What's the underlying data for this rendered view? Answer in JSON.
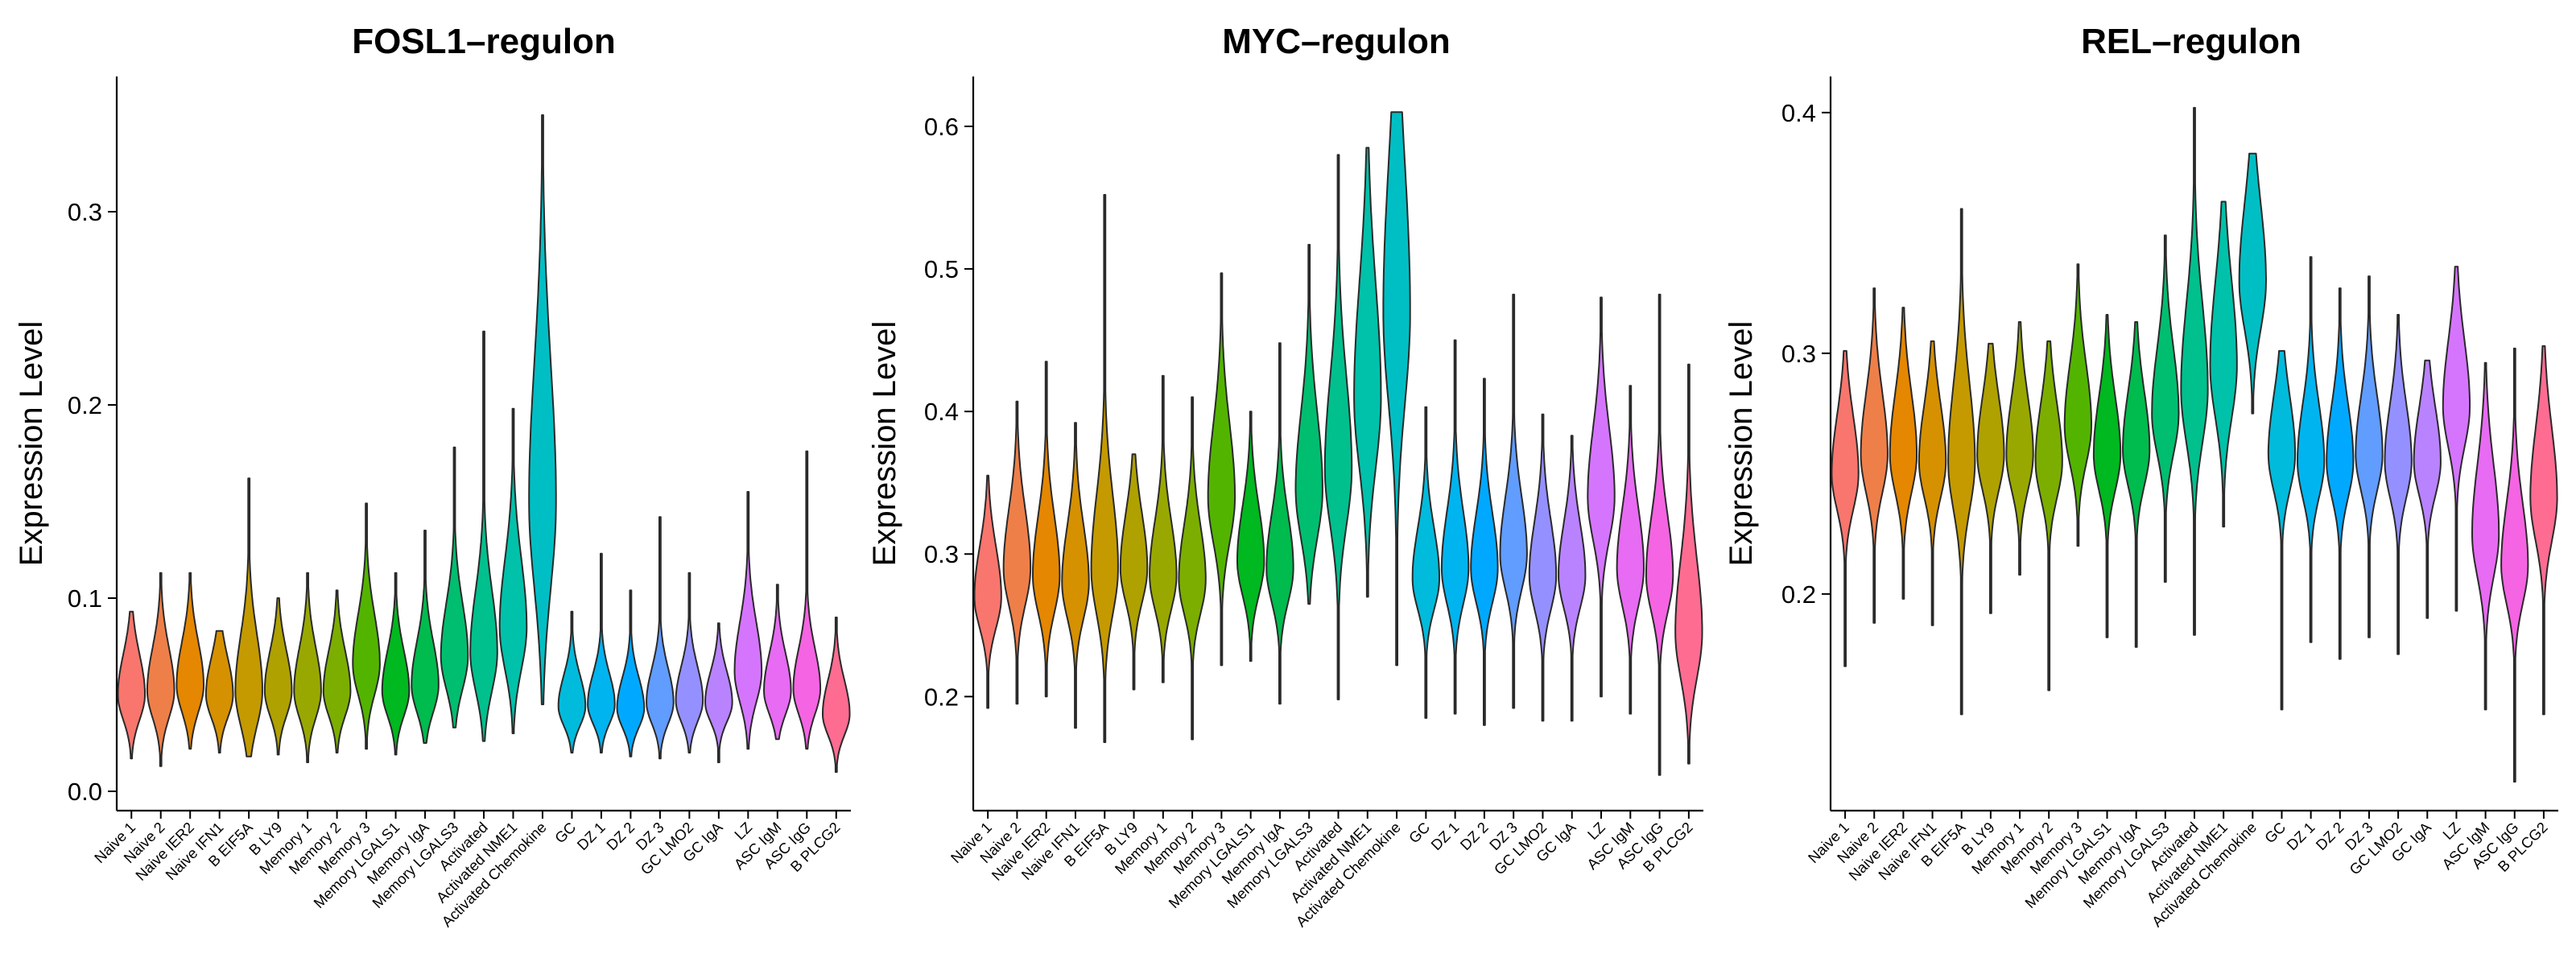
{
  "chart_data": [
    {
      "type": "violin",
      "title": "FOSL1–regulon",
      "ylabel": "Expression Level",
      "ylim": [
        -0.01,
        0.37
      ],
      "yticks": [
        0.0,
        0.1,
        0.2,
        0.3
      ],
      "ytick_labels": [
        "0.0",
        "0.1",
        "0.2",
        "0.3"
      ],
      "grid": false,
      "legend": "none",
      "series": [
        {
          "category": "Naive 1",
          "color": "#F8766D",
          "min": 0.017,
          "center": 0.05,
          "max": 0.093,
          "spread": 0.013
        },
        {
          "category": "Naive 2",
          "color": "#EF7F49",
          "min": 0.013,
          "center": 0.052,
          "max": 0.113,
          "spread": 0.014
        },
        {
          "category": "Naive IER2",
          "color": "#E58700",
          "min": 0.022,
          "center": 0.055,
          "max": 0.113,
          "spread": 0.014
        },
        {
          "category": "Naive IFN1",
          "color": "#D69100",
          "min": 0.02,
          "center": 0.05,
          "max": 0.083,
          "spread": 0.012
        },
        {
          "category": "B EIF5A",
          "color": "#C49A00",
          "min": 0.018,
          "center": 0.052,
          "max": 0.162,
          "spread": 0.018
        },
        {
          "category": "B LY9",
          "color": "#AFA100",
          "min": 0.019,
          "center": 0.052,
          "max": 0.1,
          "spread": 0.013
        },
        {
          "category": "Memory 1",
          "color": "#99A800",
          "min": 0.015,
          "center": 0.052,
          "max": 0.113,
          "spread": 0.014
        },
        {
          "category": "Memory 2",
          "color": "#7CAE00",
          "min": 0.02,
          "center": 0.052,
          "max": 0.104,
          "spread": 0.013
        },
        {
          "category": "Memory 3",
          "color": "#53B400",
          "min": 0.022,
          "center": 0.066,
          "max": 0.149,
          "spread": 0.016
        },
        {
          "category": "Memory LGALS1",
          "color": "#00B81F",
          "min": 0.019,
          "center": 0.052,
          "max": 0.113,
          "spread": 0.013
        },
        {
          "category": "Memory IgA",
          "color": "#00BB4E",
          "min": 0.025,
          "center": 0.055,
          "max": 0.135,
          "spread": 0.014
        },
        {
          "category": "Memory LGALS3",
          "color": "#00BE70",
          "min": 0.033,
          "center": 0.07,
          "max": 0.178,
          "spread": 0.017
        },
        {
          "category": "Activated",
          "color": "#00C08E",
          "min": 0.026,
          "center": 0.072,
          "max": 0.238,
          "spread": 0.02
        },
        {
          "category": "Activated NME1",
          "color": "#00C1AA",
          "min": 0.03,
          "center": 0.085,
          "max": 0.198,
          "spread": 0.022
        },
        {
          "category": "Activated Chemokine",
          "color": "#00BFC4",
          "min": 0.045,
          "center": 0.15,
          "max": 0.35,
          "spread": 0.045
        },
        {
          "category": "GC",
          "color": "#00BBDC",
          "min": 0.02,
          "center": 0.044,
          "max": 0.093,
          "spread": 0.01
        },
        {
          "category": "DZ 1",
          "color": "#00B4EF",
          "min": 0.02,
          "center": 0.045,
          "max": 0.123,
          "spread": 0.01
        },
        {
          "category": "DZ 2",
          "color": "#00A9FF",
          "min": 0.018,
          "center": 0.043,
          "max": 0.104,
          "spread": 0.01
        },
        {
          "category": "DZ 3",
          "color": "#619CFF",
          "min": 0.017,
          "center": 0.046,
          "max": 0.142,
          "spread": 0.011
        },
        {
          "category": "GC LMO2",
          "color": "#9590FF",
          "min": 0.02,
          "center": 0.047,
          "max": 0.113,
          "spread": 0.011
        },
        {
          "category": "GC IgA",
          "color": "#B983FF",
          "min": 0.015,
          "center": 0.046,
          "max": 0.087,
          "spread": 0.01
        },
        {
          "category": "LZ",
          "color": "#D575FE",
          "min": 0.022,
          "center": 0.062,
          "max": 0.155,
          "spread": 0.016
        },
        {
          "category": "ASC IgM",
          "color": "#E76BF3",
          "min": 0.027,
          "center": 0.052,
          "max": 0.107,
          "spread": 0.012
        },
        {
          "category": "ASC IgG",
          "color": "#F564E3",
          "min": 0.022,
          "center": 0.053,
          "max": 0.176,
          "spread": 0.013
        },
        {
          "category": "B PLCG2",
          "color": "#FE6C92",
          "min": 0.01,
          "center": 0.04,
          "max": 0.09,
          "spread": 0.011
        }
      ]
    },
    {
      "type": "violin",
      "title": "MYC–regulon",
      "ylabel": "Expression Level",
      "ylim": [
        0.12,
        0.635
      ],
      "yticks": [
        0.2,
        0.3,
        0.4,
        0.5,
        0.6
      ],
      "ytick_labels": [
        "0.2",
        "0.3",
        "0.4",
        "0.5",
        "0.6"
      ],
      "grid": false,
      "legend": "none",
      "series": [
        {
          "category": "Naive 1",
          "color": "#F8766D",
          "min": 0.192,
          "center": 0.27,
          "max": 0.355,
          "spread": 0.022
        },
        {
          "category": "Naive 2",
          "color": "#EF7F49",
          "min": 0.195,
          "center": 0.29,
          "max": 0.407,
          "spread": 0.026
        },
        {
          "category": "Naive IER2",
          "color": "#E58700",
          "min": 0.2,
          "center": 0.285,
          "max": 0.435,
          "spread": 0.026
        },
        {
          "category": "Naive IFN1",
          "color": "#D69100",
          "min": 0.178,
          "center": 0.28,
          "max": 0.392,
          "spread": 0.025
        },
        {
          "category": "B EIF5A",
          "color": "#C49A00",
          "min": 0.168,
          "center": 0.29,
          "max": 0.552,
          "spread": 0.032
        },
        {
          "category": "B LY9",
          "color": "#AFA100",
          "min": 0.205,
          "center": 0.29,
          "max": 0.37,
          "spread": 0.024
        },
        {
          "category": "Memory 1",
          "color": "#99A800",
          "min": 0.21,
          "center": 0.285,
          "max": 0.425,
          "spread": 0.024
        },
        {
          "category": "Memory 2",
          "color": "#7CAE00",
          "min": 0.17,
          "center": 0.282,
          "max": 0.41,
          "spread": 0.024
        },
        {
          "category": "Memory 3",
          "color": "#53B400",
          "min": 0.222,
          "center": 0.34,
          "max": 0.497,
          "spread": 0.032
        },
        {
          "category": "Memory LGALS1",
          "color": "#00B81F",
          "min": 0.225,
          "center": 0.295,
          "max": 0.4,
          "spread": 0.024
        },
        {
          "category": "Memory IgA",
          "color": "#00BB4E",
          "min": 0.195,
          "center": 0.29,
          "max": 0.448,
          "spread": 0.024
        },
        {
          "category": "Memory LGALS3",
          "color": "#00BE70",
          "min": 0.265,
          "center": 0.345,
          "max": 0.517,
          "spread": 0.034
        },
        {
          "category": "Activated",
          "color": "#00C08E",
          "min": 0.198,
          "center": 0.36,
          "max": 0.58,
          "spread": 0.04
        },
        {
          "category": "Activated NME1",
          "color": "#00C1AA",
          "min": 0.27,
          "center": 0.41,
          "max": 0.585,
          "spread": 0.05
        },
        {
          "category": "Activated Chemokine",
          "color": "#00BFC4",
          "min": 0.222,
          "center": 0.47,
          "max": 0.61,
          "spread": 0.065
        },
        {
          "category": "GC",
          "color": "#00BBDC",
          "min": 0.185,
          "center": 0.283,
          "max": 0.403,
          "spread": 0.022
        },
        {
          "category": "DZ 1",
          "color": "#00B4EF",
          "min": 0.188,
          "center": 0.29,
          "max": 0.45,
          "spread": 0.025
        },
        {
          "category": "DZ 2",
          "color": "#00A9FF",
          "min": 0.18,
          "center": 0.29,
          "max": 0.423,
          "spread": 0.024
        },
        {
          "category": "DZ 3",
          "color": "#619CFF",
          "min": 0.192,
          "center": 0.3,
          "max": 0.482,
          "spread": 0.025
        },
        {
          "category": "GC LMO2",
          "color": "#9590FF",
          "min": 0.183,
          "center": 0.285,
          "max": 0.398,
          "spread": 0.024
        },
        {
          "category": "GC IgA",
          "color": "#B983FF",
          "min": 0.183,
          "center": 0.285,
          "max": 0.383,
          "spread": 0.023
        },
        {
          "category": "LZ",
          "color": "#D575FE",
          "min": 0.2,
          "center": 0.34,
          "max": 0.48,
          "spread": 0.03
        },
        {
          "category": "ASC IgM",
          "color": "#E76BF3",
          "min": 0.188,
          "center": 0.29,
          "max": 0.418,
          "spread": 0.026
        },
        {
          "category": "ASC IgG",
          "color": "#F564E3",
          "min": 0.145,
          "center": 0.285,
          "max": 0.482,
          "spread": 0.026
        },
        {
          "category": "B PLCG2",
          "color": "#FE6C92",
          "min": 0.153,
          "center": 0.245,
          "max": 0.433,
          "spread": 0.032
        }
      ]
    },
    {
      "type": "violin",
      "title": "REL–regulon",
      "ylabel": "Expression Level",
      "ylim": [
        0.11,
        0.415
      ],
      "yticks": [
        0.2,
        0.3,
        0.4
      ],
      "ytick_labels": [
        "0.2",
        "0.3",
        "0.4"
      ],
      "grid": false,
      "legend": "none",
      "series": [
        {
          "category": "Naive 1",
          "color": "#F8766D",
          "min": 0.17,
          "center": 0.25,
          "max": 0.301,
          "spread": 0.015
        },
        {
          "category": "Naive 2",
          "color": "#EF7F49",
          "min": 0.188,
          "center": 0.258,
          "max": 0.327,
          "spread": 0.016
        },
        {
          "category": "Naive IER2",
          "color": "#E58700",
          "min": 0.198,
          "center": 0.258,
          "max": 0.319,
          "spread": 0.016
        },
        {
          "category": "Naive IFN1",
          "color": "#D69100",
          "min": 0.187,
          "center": 0.255,
          "max": 0.305,
          "spread": 0.015
        },
        {
          "category": "B EIF5A",
          "color": "#C49A00",
          "min": 0.15,
          "center": 0.255,
          "max": 0.36,
          "spread": 0.02
        },
        {
          "category": "B LY9",
          "color": "#AFA100",
          "min": 0.192,
          "center": 0.258,
          "max": 0.304,
          "spread": 0.015
        },
        {
          "category": "Memory 1",
          "color": "#99A800",
          "min": 0.208,
          "center": 0.258,
          "max": 0.313,
          "spread": 0.015
        },
        {
          "category": "Memory 2",
          "color": "#7CAE00",
          "min": 0.16,
          "center": 0.255,
          "max": 0.305,
          "spread": 0.015
        },
        {
          "category": "Memory 3",
          "color": "#53B400",
          "min": 0.22,
          "center": 0.27,
          "max": 0.337,
          "spread": 0.016
        },
        {
          "category": "Memory LGALS1",
          "color": "#00B81F",
          "min": 0.182,
          "center": 0.258,
          "max": 0.316,
          "spread": 0.015
        },
        {
          "category": "Memory IgA",
          "color": "#00BB4E",
          "min": 0.178,
          "center": 0.26,
          "max": 0.313,
          "spread": 0.015
        },
        {
          "category": "Memory LGALS3",
          "color": "#00BE70",
          "min": 0.205,
          "center": 0.275,
          "max": 0.349,
          "spread": 0.017
        },
        {
          "category": "Activated",
          "color": "#00C08E",
          "min": 0.183,
          "center": 0.285,
          "max": 0.402,
          "spread": 0.022
        },
        {
          "category": "Activated NME1",
          "color": "#00C1AA",
          "min": 0.228,
          "center": 0.295,
          "max": 0.363,
          "spread": 0.022
        },
        {
          "category": "Activated Chemokine",
          "color": "#00BFC4",
          "min": 0.275,
          "center": 0.33,
          "max": 0.383,
          "spread": 0.02
        },
        {
          "category": "GC",
          "color": "#00BBDC",
          "min": 0.152,
          "center": 0.258,
          "max": 0.301,
          "spread": 0.015
        },
        {
          "category": "DZ 1",
          "color": "#00B4EF",
          "min": 0.18,
          "center": 0.255,
          "max": 0.34,
          "spread": 0.015
        },
        {
          "category": "DZ 2",
          "color": "#00A9FF",
          "min": 0.173,
          "center": 0.255,
          "max": 0.327,
          "spread": 0.015
        },
        {
          "category": "DZ 3",
          "color": "#619CFF",
          "min": 0.182,
          "center": 0.258,
          "max": 0.332,
          "spread": 0.015
        },
        {
          "category": "GC LMO2",
          "color": "#9590FF",
          "min": 0.175,
          "center": 0.255,
          "max": 0.316,
          "spread": 0.015
        },
        {
          "category": "GC IgA",
          "color": "#B983FF",
          "min": 0.19,
          "center": 0.255,
          "max": 0.297,
          "spread": 0.014
        },
        {
          "category": "LZ",
          "color": "#D575FE",
          "min": 0.193,
          "center": 0.278,
          "max": 0.336,
          "spread": 0.017
        },
        {
          "category": "ASC IgM",
          "color": "#E76BF3",
          "min": 0.152,
          "center": 0.225,
          "max": 0.296,
          "spread": 0.018
        },
        {
          "category": "ASC IgG",
          "color": "#F564E3",
          "min": 0.122,
          "center": 0.212,
          "max": 0.302,
          "spread": 0.016
        },
        {
          "category": "B PLCG2",
          "color": "#FE6C92",
          "min": 0.15,
          "center": 0.24,
          "max": 0.303,
          "spread": 0.018
        }
      ]
    }
  ]
}
